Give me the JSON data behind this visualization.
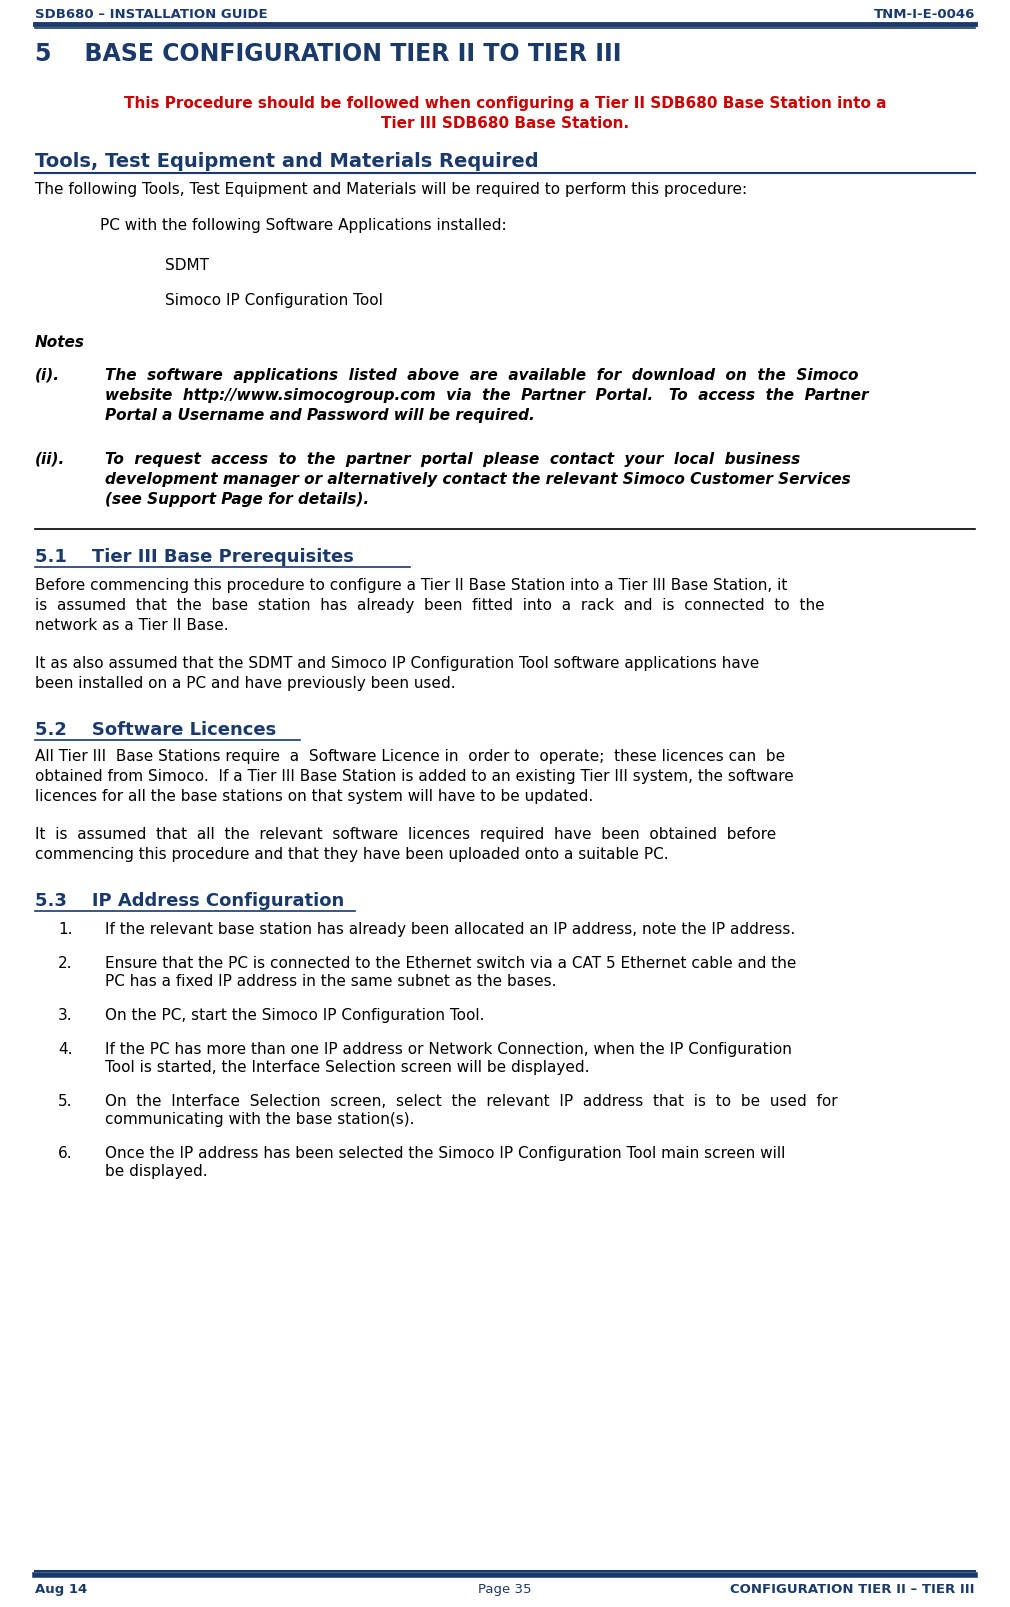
{
  "page_width": 10.1,
  "page_height": 16.08,
  "dpi": 100,
  "bg_color": "#ffffff",
  "dark_blue": "#1a3a6b",
  "red": "#cc0000",
  "header_left": "SDB680 – INSTALLATION GUIDE",
  "header_right": "TNM-I-E-0046",
  "footer_left": "Aug 14",
  "footer_center": "Page 35",
  "footer_right": "CONFIGURATION TIER II – TIER III",
  "section_title": "5    BASE CONFIGURATION TIER II TO TIER III",
  "red_notice_line1": "This Procedure should be followed when configuring a Tier II SDB680 Base Station into a",
  "red_notice_line2": "Tier III SDB680 Base Station.",
  "tools_heading": "Tools, Test Equipment and Materials Required",
  "tools_intro": "The following Tools, Test Equipment and Materials will be required to perform this procedure:",
  "pc_line": "PC with the following Software Applications installed:",
  "sdmt_line": "SDMT",
  "simoco_line": "Simoco IP Configuration Tool",
  "notes_heading": "Notes",
  "note_i_label": "(i).",
  "note_i_lines": [
    "The  software  applications  listed  above  are  available  for  download  on  the  Simoco",
    "website  http://www.simocogroup.com  via  the  Partner  Portal.   To  access  the  Partner",
    "Portal a Username and Password will be required."
  ],
  "note_ii_label": "(ii).",
  "note_ii_lines": [
    "To  request  access  to  the  partner  portal  please  contact  your  local  business",
    "development manager or alternatively contact the relevant Simoco Customer Services",
    "(see Support Page for details)."
  ],
  "sec51_title": "5.1    Tier III Base Prerequisites",
  "sec51_p1_lines": [
    "Before commencing this procedure to configure a Tier II Base Station into a Tier III Base Station, it",
    "is  assumed  that  the  base  station  has  already  been  fitted  into  a  rack  and  is  connected  to  the",
    "network as a Tier II Base."
  ],
  "sec51_p2_lines": [
    "It as also assumed that the SDMT and Simoco IP Configuration Tool software applications have",
    "been installed on a PC and have previously been used."
  ],
  "sec52_title": "5.2    Software Licences",
  "sec52_p1_lines": [
    "All Tier III  Base Stations require  a  Software Licence in  order to  operate;  these licences can  be",
    "obtained from Simoco.  If a Tier III Base Station is added to an existing Tier III system, the software",
    "licences for all the base stations on that system will have to be updated."
  ],
  "sec52_p2_lines": [
    "It  is  assumed  that  all  the  relevant  software  licences  required  have  been  obtained  before",
    "commencing this procedure and that they have been uploaded onto a suitable PC."
  ],
  "sec53_title": "5.3    IP Address Configuration",
  "items": [
    {
      "num": "1.",
      "lines": [
        "If the relevant base station has already been allocated an IP address, note the IP address."
      ]
    },
    {
      "num": "2.",
      "lines": [
        "Ensure that the PC is connected to the Ethernet switch via a CAT 5 Ethernet cable and the",
        "PC has a fixed IP address in the same subnet as the bases."
      ]
    },
    {
      "num": "3.",
      "lines": [
        "On the PC, start the Simoco IP Configuration Tool."
      ]
    },
    {
      "num": "4.",
      "lines": [
        "If the PC has more than one IP address or Network Connection, when the IP Configuration",
        "Tool is started, the Interface Selection screen will be displayed."
      ]
    },
    {
      "num": "5.",
      "lines": [
        "On  the  Interface  Selection  screen,  select  the  relevant  IP  address  that  is  to  be  used  for",
        "communicating with the base station(s)."
      ]
    },
    {
      "num": "6.",
      "lines": [
        "Once the IP address has been selected the Simoco IP Configuration Tool main screen will",
        "be displayed."
      ]
    }
  ]
}
